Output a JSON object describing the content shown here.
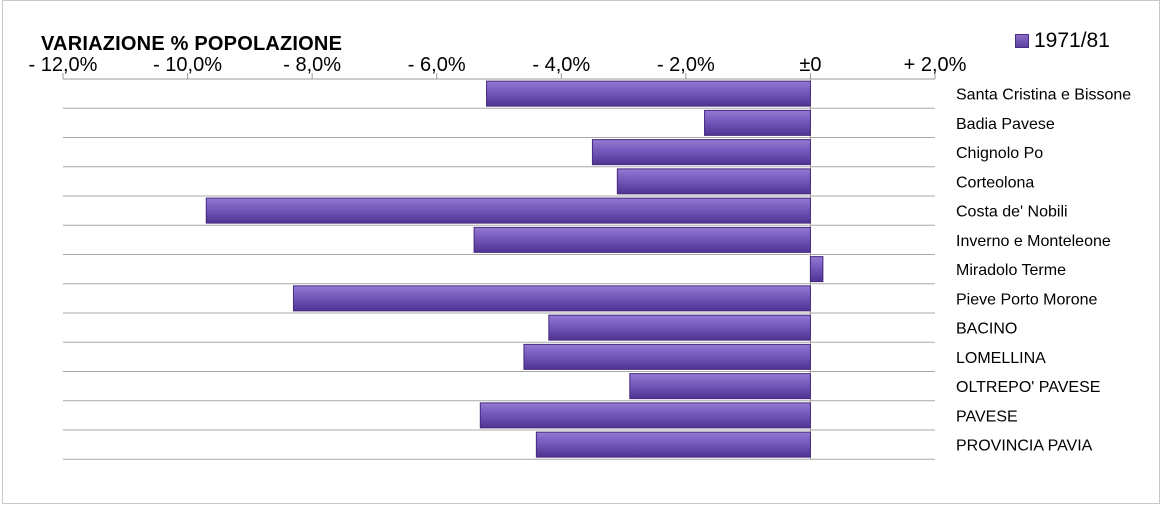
{
  "chart_data": {
    "type": "bar",
    "orientation": "horizontal",
    "title": "VARIAZIONE % POPOLAZIONE",
    "xlabel": "",
    "ylabel": "",
    "xlim": [
      -12.0,
      2.0
    ],
    "x_ticks": [
      -12,
      -10,
      -8,
      -6,
      -4,
      -2,
      0,
      2
    ],
    "x_tick_labels": [
      "- 12,0%",
      "- 10,0%",
      "- 8,0%",
      "- 6,0%",
      "- 4,0%",
      "- 2,0%",
      "±0",
      "+ 2,0%"
    ],
    "grid": true,
    "legend_position": "top-right",
    "categories": [
      "Santa Cristina e Bissone",
      "Badia Pavese",
      "Chignolo Po",
      "Corteolona",
      "Costa de' Nobili",
      "Inverno e Monteleone",
      "Miradolo Terme",
      "Pieve Porto Morone",
      "BACINO",
      "LOMELLINA",
      "OLTREPO' PAVESE",
      "PAVESE",
      "PROVINCIA PAVIA"
    ],
    "series": [
      {
        "name": "1971/81",
        "color": "#6f51b4",
        "values": [
          -5.2,
          -1.7,
          -3.5,
          -3.1,
          -9.7,
          -5.4,
          0.2,
          -8.3,
          -4.2,
          -4.6,
          -2.9,
          -5.3,
          -4.4
        ]
      }
    ]
  }
}
